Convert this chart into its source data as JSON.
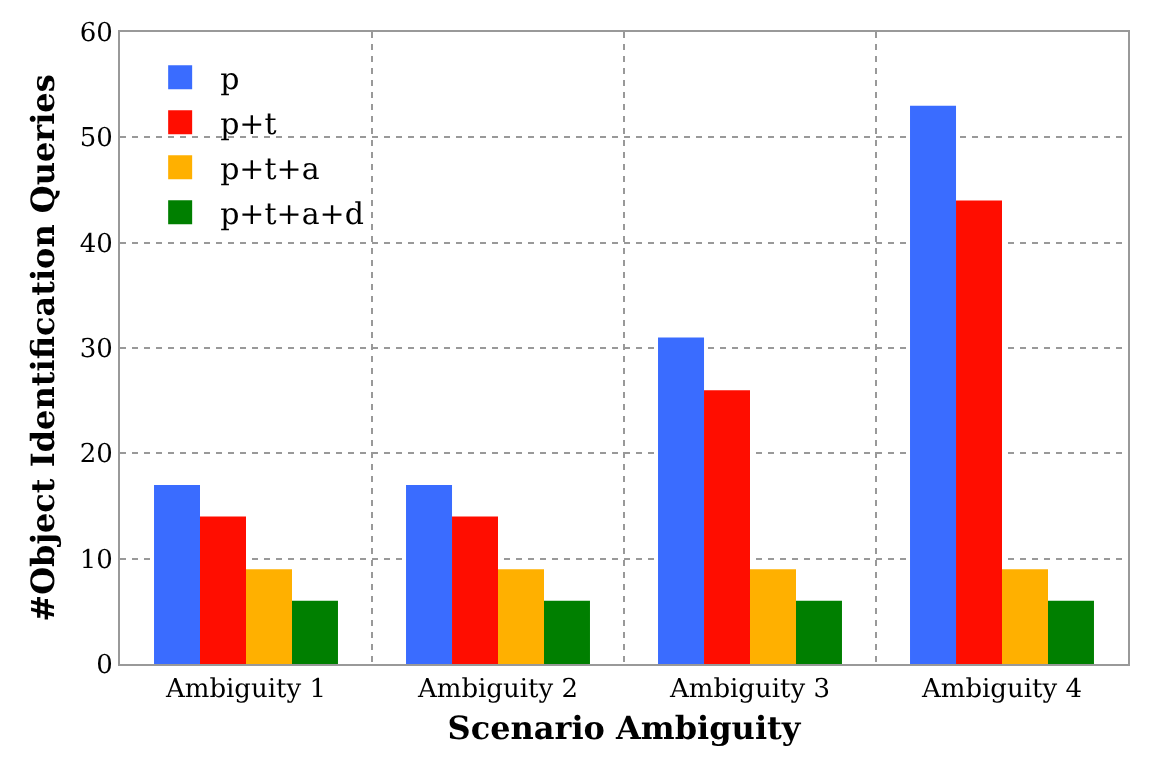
{
  "chart_data": {
    "type": "bar",
    "xlabel": "Scenario Ambiguity",
    "ylabel": "#Object Identification Queries",
    "categories": [
      "Ambiguity 1",
      "Ambiguity 2",
      "Ambiguity 3",
      "Ambiguity 4"
    ],
    "series": [
      {
        "name": "p",
        "color": "#3a6cff",
        "values": [
          17,
          17,
          31,
          53
        ]
      },
      {
        "name": "p+t",
        "color": "#ff0d00",
        "values": [
          14,
          14,
          26,
          44
        ]
      },
      {
        "name": "p+t+a",
        "color": "#ffb000",
        "values": [
          9,
          9,
          9,
          9
        ]
      },
      {
        "name": "p+t+a+d",
        "color": "#007f00",
        "values": [
          6,
          6,
          6,
          6
        ]
      }
    ],
    "ylim": [
      0,
      60
    ],
    "yticks": [
      0,
      10,
      20,
      30,
      40,
      50,
      60
    ],
    "grid": true,
    "legend": "top left"
  }
}
